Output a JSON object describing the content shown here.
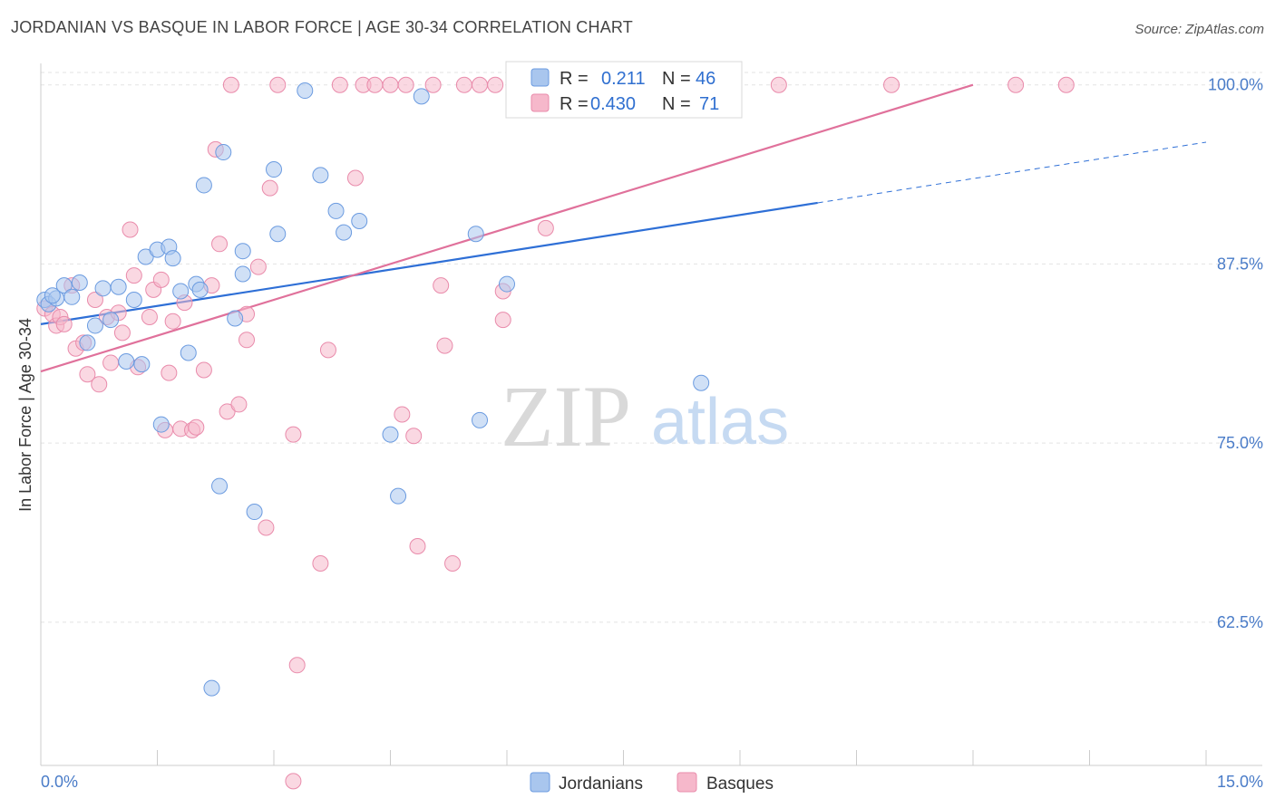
{
  "header": {
    "title": "JORDANIAN VS BASQUE IN LABOR FORCE | AGE 30-34 CORRELATION CHART",
    "source": "Source: ZipAtlas.com"
  },
  "watermark": {
    "zip": "ZIP",
    "atlas": "atlas"
  },
  "colors": {
    "jordanians_fill": "#a9c6ee",
    "jordanians_stroke": "#6b9be0",
    "jordanians_line": "#2e6fd6",
    "basques_fill": "#f6b8cb",
    "basques_stroke": "#e98bab",
    "basques_line": "#e0719b",
    "axis_text": "#4a7cc8"
  },
  "legend": {
    "rows": [
      {
        "r_label": "R =",
        "r_value": "0.211",
        "n_label": "N =",
        "n_value": "46"
      },
      {
        "r_label": "R =",
        "r_value": "0.430",
        "n_label": "N =",
        "n_value": "71"
      }
    ]
  },
  "chart_data": {
    "type": "scatter",
    "title": "JORDANIAN VS BASQUE IN LABOR FORCE | AGE 30-34 CORRELATION CHART",
    "xlabel": "",
    "ylabel": "In Labor Force | Age 30-34",
    "xlim": [
      0,
      15
    ],
    "ylim": [
      52.5,
      101.5
    ],
    "x_tick_labels": [
      "0.0%",
      "15.0%"
    ],
    "y_ticks": [
      62.5,
      75.0,
      87.5,
      100.0
    ],
    "y_tick_labels": [
      "62.5%",
      "75.0%",
      "87.5%",
      "100.0%"
    ],
    "grid": true,
    "series": [
      {
        "name": "Jordanians",
        "regression": {
          "x_start": 0.0,
          "y_start": 83.3,
          "x_end": 15.0,
          "y_end": 96.0,
          "solid_until_x": 10.0
        },
        "points": [
          [
            0.05,
            85.0
          ],
          [
            0.1,
            84.7
          ],
          [
            0.2,
            85.1
          ],
          [
            0.3,
            86.0
          ],
          [
            0.4,
            85.2
          ],
          [
            0.5,
            86.2
          ],
          [
            0.6,
            82.0
          ],
          [
            0.7,
            83.2
          ],
          [
            0.8,
            85.8
          ],
          [
            0.9,
            83.6
          ],
          [
            1.0,
            85.9
          ],
          [
            1.1,
            80.7
          ],
          [
            1.2,
            85.0
          ],
          [
            1.3,
            80.5
          ],
          [
            1.35,
            88.0
          ],
          [
            1.5,
            88.5
          ],
          [
            1.55,
            76.3
          ],
          [
            1.65,
            88.7
          ],
          [
            1.7,
            87.9
          ],
          [
            1.8,
            85.6
          ],
          [
            1.9,
            81.3
          ],
          [
            2.0,
            86.1
          ],
          [
            2.1,
            93.0
          ],
          [
            2.2,
            57.9
          ],
          [
            2.3,
            72.0
          ],
          [
            2.35,
            95.3
          ],
          [
            2.5,
            83.7
          ],
          [
            2.6,
            86.8
          ],
          [
            2.6,
            88.4
          ],
          [
            2.75,
            70.2
          ],
          [
            3.0,
            94.1
          ],
          [
            3.05,
            89.6
          ],
          [
            3.4,
            99.6
          ],
          [
            3.6,
            93.7
          ],
          [
            3.8,
            91.2
          ],
          [
            3.9,
            89.7
          ],
          [
            4.1,
            90.5
          ],
          [
            4.5,
            75.6
          ],
          [
            4.6,
            71.3
          ],
          [
            4.9,
            99.2
          ],
          [
            5.6,
            89.6
          ],
          [
            5.65,
            76.6
          ],
          [
            6.0,
            86.1
          ],
          [
            8.5,
            79.2
          ],
          [
            0.15,
            85.3
          ],
          [
            2.05,
            85.7
          ]
        ]
      },
      {
        "name": "Basques",
        "regression": {
          "x_start": 0.0,
          "y_start": 80.0,
          "x_end": 12.0,
          "y_end": 100.0,
          "solid_until_x": 12.0
        },
        "points": [
          [
            0.05,
            84.4
          ],
          [
            0.15,
            84.0
          ],
          [
            0.2,
            83.2
          ],
          [
            0.25,
            83.8
          ],
          [
            0.3,
            83.3
          ],
          [
            0.4,
            86.0
          ],
          [
            0.45,
            81.6
          ],
          [
            0.55,
            82.0
          ],
          [
            0.6,
            79.8
          ],
          [
            0.7,
            85.0
          ],
          [
            0.75,
            79.1
          ],
          [
            0.85,
            83.8
          ],
          [
            0.9,
            80.6
          ],
          [
            1.0,
            84.1
          ],
          [
            1.05,
            82.7
          ],
          [
            1.15,
            89.9
          ],
          [
            1.2,
            86.7
          ],
          [
            1.25,
            80.3
          ],
          [
            1.4,
            83.8
          ],
          [
            1.45,
            85.7
          ],
          [
            1.55,
            86.4
          ],
          [
            1.6,
            75.9
          ],
          [
            1.65,
            79.9
          ],
          [
            1.7,
            83.5
          ],
          [
            1.8,
            76.0
          ],
          [
            1.85,
            84.8
          ],
          [
            1.95,
            75.9
          ],
          [
            2.0,
            76.1
          ],
          [
            2.1,
            80.1
          ],
          [
            2.2,
            86.0
          ],
          [
            2.25,
            95.5
          ],
          [
            2.3,
            88.9
          ],
          [
            2.4,
            77.2
          ],
          [
            2.45,
            100.0
          ],
          [
            2.55,
            77.7
          ],
          [
            2.65,
            84.0
          ],
          [
            2.65,
            82.2
          ],
          [
            2.8,
            87.3
          ],
          [
            2.9,
            69.1
          ],
          [
            2.95,
            92.8
          ],
          [
            3.05,
            100.0
          ],
          [
            3.25,
            51.4
          ],
          [
            3.25,
            75.6
          ],
          [
            3.3,
            59.5
          ],
          [
            3.6,
            66.6
          ],
          [
            3.7,
            81.5
          ],
          [
            3.85,
            100.0
          ],
          [
            4.05,
            93.5
          ],
          [
            4.15,
            100.0
          ],
          [
            4.3,
            100.0
          ],
          [
            4.5,
            100.0
          ],
          [
            4.65,
            77.0
          ],
          [
            4.7,
            100.0
          ],
          [
            4.8,
            75.5
          ],
          [
            4.85,
            67.8
          ],
          [
            5.05,
            100.0
          ],
          [
            5.15,
            86.0
          ],
          [
            5.2,
            81.8
          ],
          [
            5.3,
            66.6
          ],
          [
            5.45,
            100.0
          ],
          [
            5.65,
            100.0
          ],
          [
            5.85,
            100.0
          ],
          [
            5.95,
            83.6
          ],
          [
            5.95,
            85.6
          ],
          [
            6.25,
            100.0
          ],
          [
            6.5,
            90.0
          ],
          [
            8.7,
            100.0
          ],
          [
            9.5,
            100.0
          ],
          [
            10.95,
            100.0
          ],
          [
            12.55,
            100.0
          ],
          [
            13.2,
            100.0
          ]
        ]
      }
    ]
  }
}
